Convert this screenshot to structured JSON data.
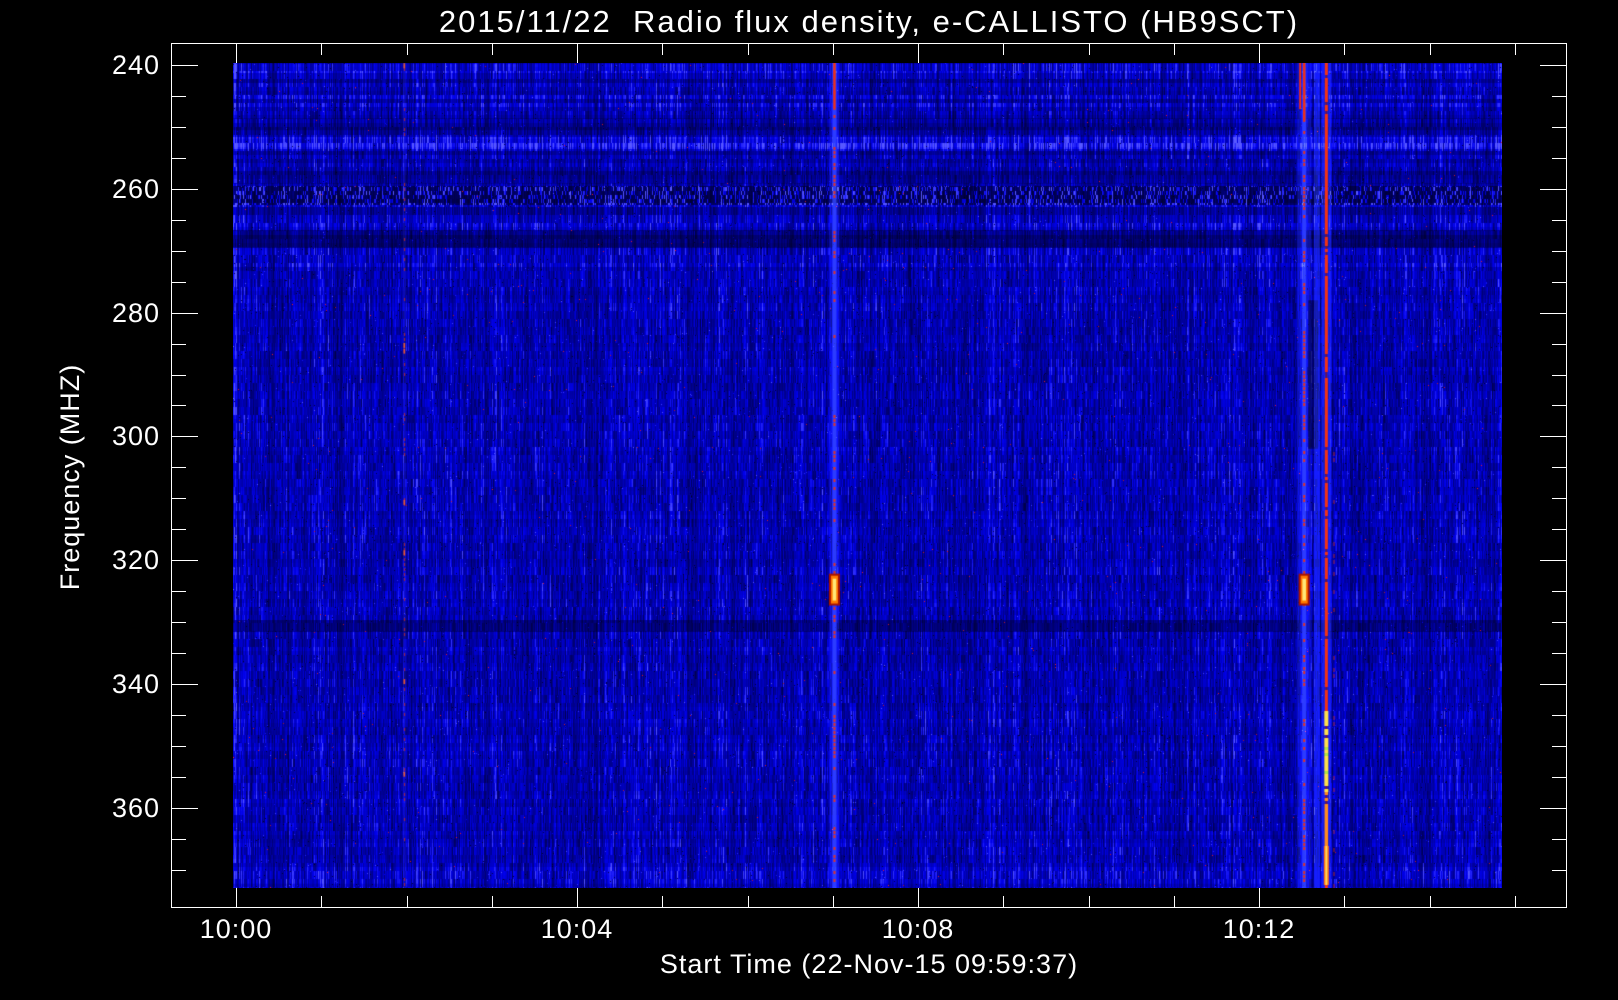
{
  "page": {
    "background": "#000000",
    "axis_color": "#ffffff"
  },
  "chart_data": {
    "type": "heatmap",
    "subtype": "radio-spectrogram",
    "title": "2015/11/22  Radio flux density, e-CALLISTO (HB9SCT)",
    "station": "HB9SCT",
    "date": "2015/11/22",
    "xlabel": "Start Time (22-Nov-15 09:59:37)",
    "ylabel": "Frequency (MHZ)",
    "x_axis": {
      "tick_labels": [
        "10:00",
        "10:04",
        "10:08",
        "10:12"
      ],
      "tick_minutes": [
        0,
        4,
        8,
        12
      ],
      "minor_tick_every_min": 1,
      "minor_tick_max_min": 15
    },
    "y_axis": {
      "unit": "MHz",
      "tick_values": [
        240,
        260,
        280,
        300,
        320,
        340,
        360
      ],
      "minor_step": 5,
      "minor_min": 245,
      "minor_max": 370,
      "inverted": true,
      "axis_range": [
        236.5,
        375.7
      ]
    },
    "data_extent": {
      "time_start": "09:59:37",
      "time_end_approx": "10:14:50",
      "freq_min_mhz": 239.7,
      "freq_max_mhz": 372.3
    },
    "background": {
      "description": "quiet solar radio background: deep blue with fine vertical noise striations and horizontal frequency bands",
      "base_color": "#0000a8"
    },
    "bands": [
      {
        "mhz": [
          239.7,
          241.2
        ],
        "factor": 1.25
      },
      {
        "mhz": [
          248.5,
          250.5
        ],
        "factor": 0.78
      },
      {
        "mhz": [
          251.5,
          253.5
        ],
        "factor": 1.3
      },
      {
        "mhz": [
          257.0,
          259.2
        ],
        "factor": 0.8
      },
      {
        "mhz": [
          259.5,
          262.5
        ],
        "factor": 0.45,
        "speckle": true
      },
      {
        "mhz": [
          266.5,
          269.5
        ],
        "factor": 0.6
      },
      {
        "mhz": [
          329.5,
          331.5
        ],
        "factor": 0.62
      },
      {
        "mhz": [
          369.5,
          372.3
        ],
        "factor": 1.1
      }
    ],
    "rfi_lines": [
      {
        "time": "10:02:00",
        "minute": 1.97,
        "style": "faint_dashed",
        "strength": 0.4
      },
      {
        "time": "10:07:00",
        "minute": 7.02,
        "style": "dashed_core",
        "glow_width": 10,
        "solid_top_mhz": 247,
        "blob_mhz": [
          322.5,
          327
        ],
        "strong_mhz": [
          [
            240,
            247
          ],
          [
            252,
            262
          ],
          [
            302,
            312
          ],
          [
            345,
            352
          ],
          [
            363,
            372
          ]
        ],
        "strength": 0.85
      },
      {
        "time": "10:12:31",
        "minute": 12.53,
        "style": "dashed_core",
        "glow_width": 14,
        "solid_top_mhz": 249,
        "top_double": true,
        "blob_mhz": [
          322.5,
          327
        ],
        "dark_patch_mhz": [
          278,
          302
        ],
        "strong_mhz": [
          [
            240,
            249
          ],
          [
            253,
            263
          ],
          [
            283,
            299
          ],
          [
            322,
            327
          ],
          [
            358,
            366
          ]
        ],
        "strength": 0.95
      },
      {
        "time": "10:12:40",
        "minute": 12.68,
        "style": "glow_only",
        "glow_width": 6,
        "strength": 0.4
      },
      {
        "time": "10:12:46",
        "minute": 12.79,
        "style": "continuous",
        "yellow_mhz": [
          344,
          357
        ],
        "green_mhz": [
          350,
          355
        ],
        "orange_mhz": [
          357,
          366
        ],
        "hot_bottom_mhz": [
          366,
          372.3
        ],
        "strength": 1.0
      }
    ],
    "palette": {
      "base_blue": "#0000a8",
      "bright_blue": "#4040e0",
      "dark_blue": "#000040",
      "red": "#ff2a10",
      "orange": "#ff8800",
      "yellow": "#ffe24a",
      "green_yellow": "#b4e63c"
    }
  }
}
